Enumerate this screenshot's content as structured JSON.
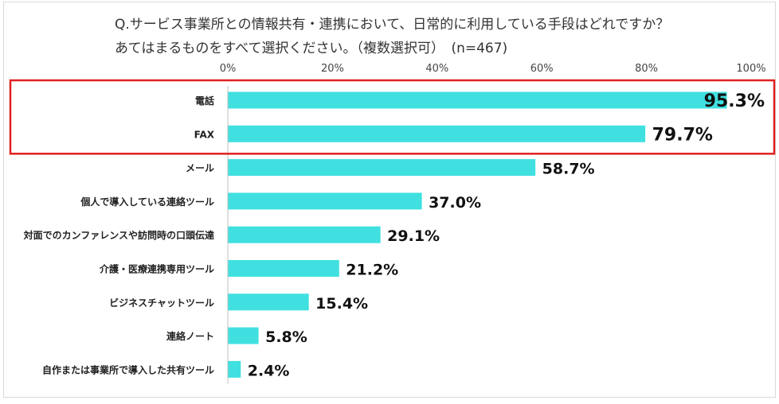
{
  "question": {
    "line1": "Q.サービス事業所との情報共有・連携において、日常的に利用している手段はどれですか？",
    "line2": "あてはまるものをすべて選択ください。（複数選択可）　(n=467)"
  },
  "chart_data": {
    "type": "bar",
    "orientation": "horizontal",
    "categories": [
      "電話",
      "FAX",
      "メール",
      "個人で導入している連絡ツール",
      "対面でのカンファレンスや訪問時の口頭伝達",
      "介護・医療連携専用ツール",
      "ビジネスチャットツール",
      "連絡ノート",
      "自作または事業所で導入した共有ツール"
    ],
    "values": [
      95.3,
      79.7,
      58.7,
      37.0,
      29.1,
      21.2,
      15.4,
      5.8,
      2.4
    ],
    "value_labels": [
      "95.3%",
      "79.7%",
      "58.7%",
      "37.0%",
      "29.1%",
      "21.2%",
      "15.4%",
      "5.8%",
      "2.4%"
    ],
    "xlim": [
      0,
      100
    ],
    "x_ticks": [
      "0%",
      "20%",
      "40%",
      "60%",
      "80%",
      "100%"
    ],
    "x_tick_values": [
      0,
      20,
      40,
      60,
      80,
      100
    ],
    "grid": false,
    "axis_position": "top",
    "highlighted_categories": [
      "電話",
      "FAX"
    ],
    "colors": {
      "bar": "#40E0E0",
      "highlight_border": "#E02020",
      "axis": "#BFBFBF"
    }
  }
}
